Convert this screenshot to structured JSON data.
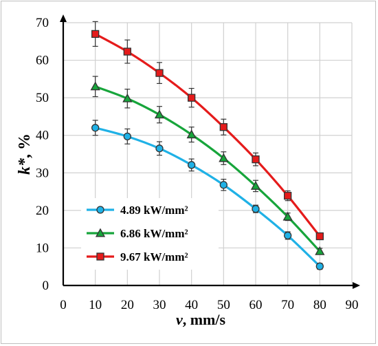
{
  "chart_data": {
    "type": "line",
    "title": "",
    "xlabel_var": "v",
    "xlabel_unit": ", mm/s",
    "ylabel_var": "k*",
    "ylabel_unit": ", %",
    "xlim": [
      0,
      90
    ],
    "ylim": [
      0,
      70
    ],
    "xticks": [
      "0",
      "10",
      "20",
      "30",
      "40",
      "50",
      "60",
      "70",
      "80",
      "90"
    ],
    "yticks": [
      "0",
      "10",
      "20",
      "30",
      "40",
      "50",
      "60",
      "70"
    ],
    "grid": true,
    "legend_position": "bottom-left",
    "x": [
      10,
      20,
      30,
      40,
      50,
      60,
      70,
      80
    ],
    "series": [
      {
        "name": "4.89 kW/mm²",
        "color": "#1fb1e6",
        "marker": "circle",
        "values": [
          42.0,
          39.7,
          36.5,
          32.1,
          26.8,
          20.4,
          13.3,
          5.1
        ],
        "error": [
          2.0,
          2.0,
          1.8,
          1.6,
          1.5,
          1.0,
          1.0,
          0.8
        ]
      },
      {
        "name": "6.86 kW/mm²",
        "color": "#17a53b",
        "marker": "triangle",
        "values": [
          53.0,
          49.8,
          45.5,
          40.2,
          33.9,
          26.5,
          18.3,
          9.1
        ],
        "error": [
          2.7,
          2.5,
          2.2,
          2.0,
          1.7,
          1.5,
          1.0,
          0.8
        ]
      },
      {
        "name": "9.67 kW/mm²",
        "color": "#e51b1b",
        "marker": "square",
        "values": [
          67.0,
          62.3,
          56.6,
          50.0,
          42.2,
          33.6,
          23.9,
          13.1
        ],
        "error": [
          3.3,
          3.1,
          2.8,
          2.5,
          2.1,
          1.7,
          1.3,
          0.8
        ]
      }
    ]
  }
}
